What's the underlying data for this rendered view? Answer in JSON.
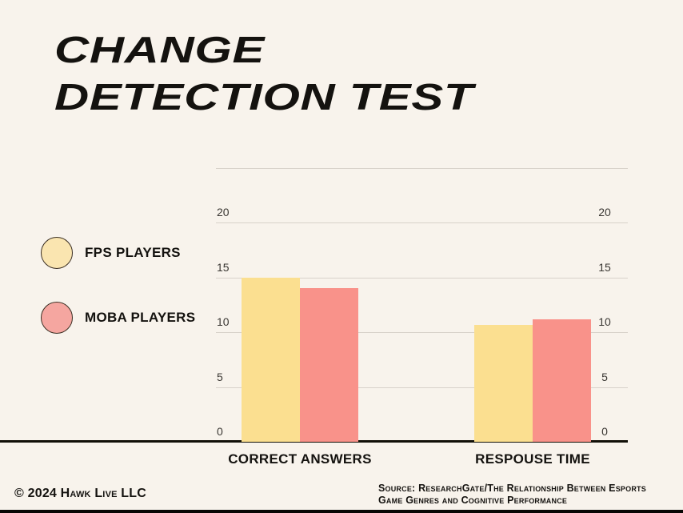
{
  "header": {
    "title_line1": "CHANGE",
    "title_line2": "DETECTION TEST"
  },
  "legend": {
    "items": [
      {
        "label": "FPS PLAYERS",
        "color": "#fae5b0"
      },
      {
        "label": "MOBA PLAYERS",
        "color": "#f5a6a0"
      }
    ]
  },
  "footer": {
    "copyright": "© 2024 Hawk Live LLC",
    "source_line1": "Source: ResearchGate/The Relationship Between Esports",
    "source_line2": "Game Genres and Cognitive Performance"
  },
  "colors": {
    "background": "#f8f3ec",
    "gridline": "#d8d2ca",
    "axis": "#121008",
    "fps_bar": "#fbdf90",
    "moba_bar": "#f9928a"
  },
  "chart_data": {
    "type": "bar",
    "categories": [
      "CORRECT ANSWERS",
      "RESPOUSE TIME"
    ],
    "series": [
      {
        "name": "FPS PLAYERS",
        "color": "#fbdf90",
        "values": [
          15,
          10.7
        ]
      },
      {
        "name": "MOBA PLAYERS",
        "color": "#f9928a",
        "values": [
          14,
          11.2
        ]
      }
    ],
    "ylim": [
      0,
      25
    ],
    "yticks": [
      0,
      5,
      10,
      15,
      20
    ],
    "gridlines": [
      5,
      10,
      15,
      20,
      25
    ],
    "grid": true,
    "tick_label_sides": "both",
    "legend_position": "left"
  }
}
